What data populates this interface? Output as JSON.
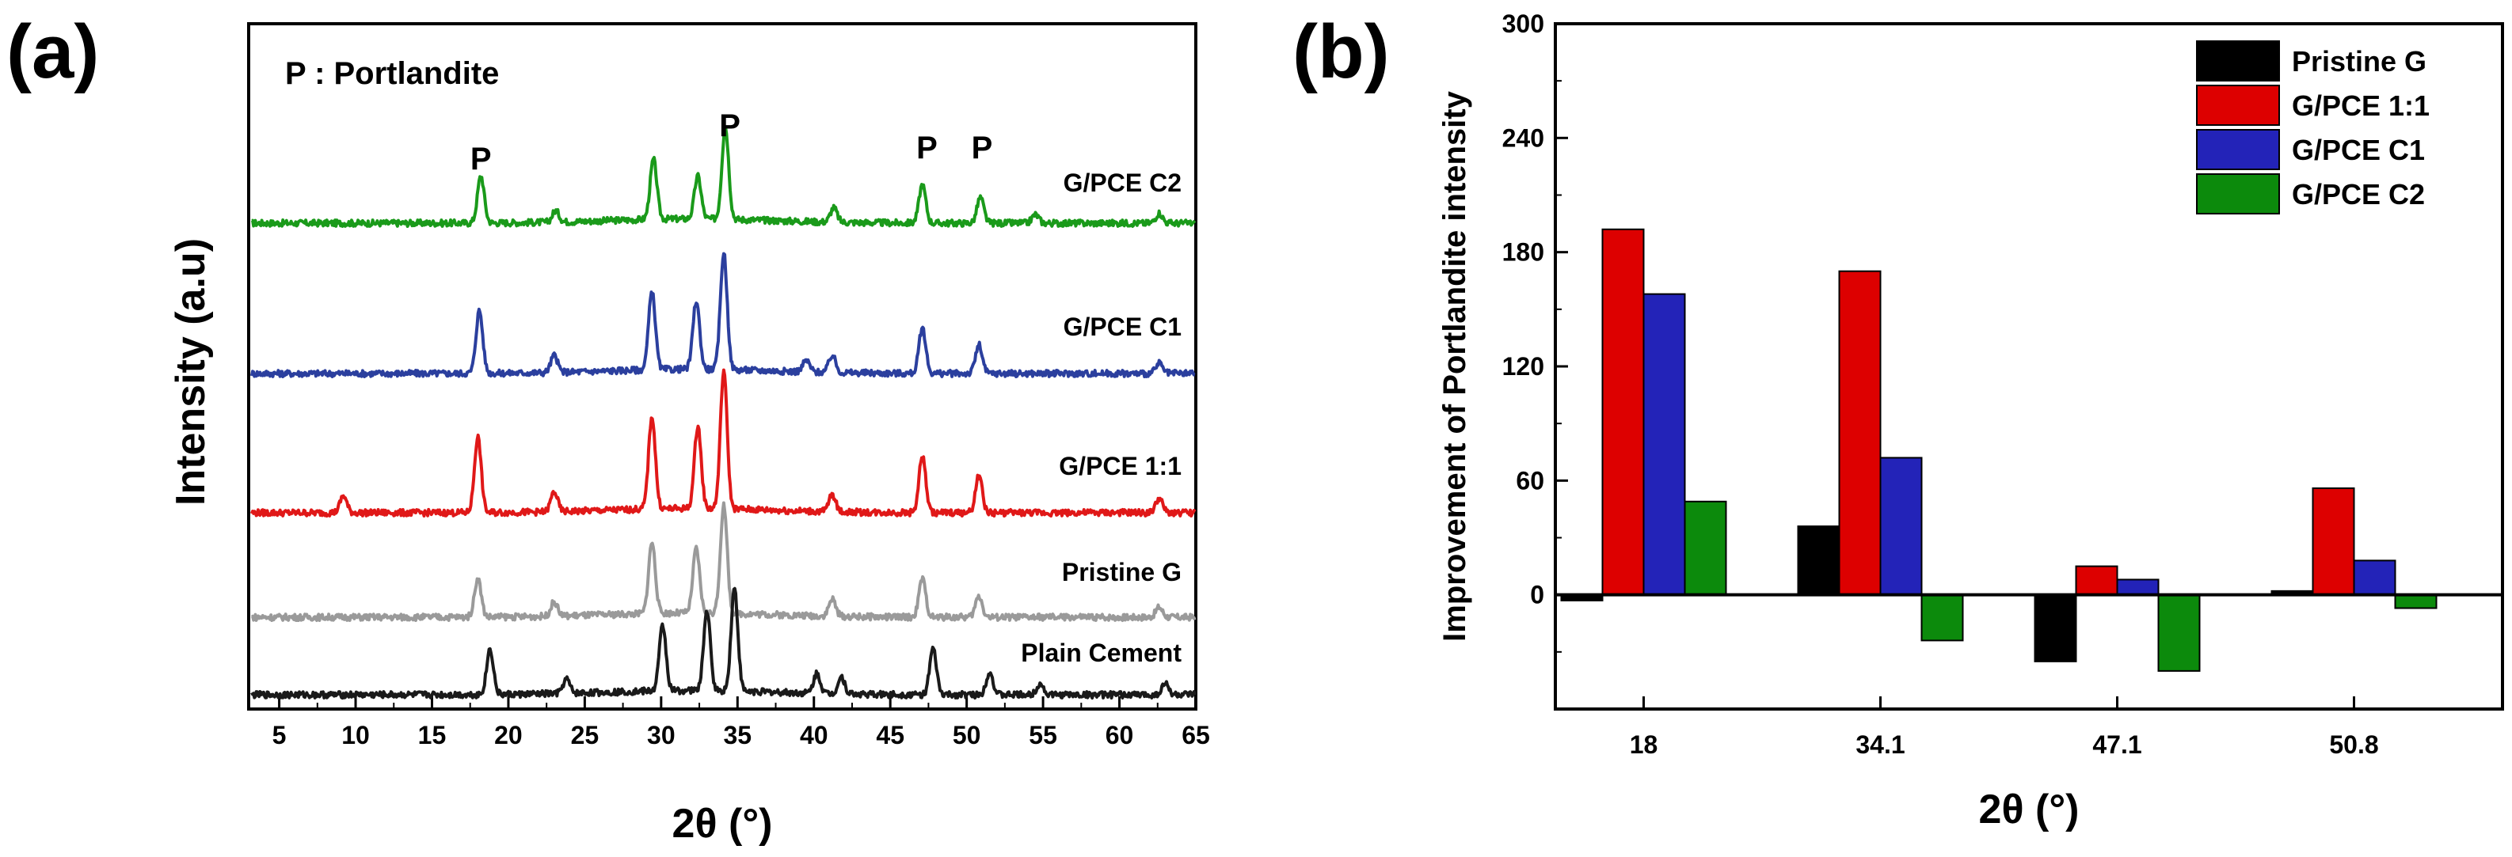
{
  "chart_data": [
    {
      "panel": "(a)",
      "type": "line",
      "title": "",
      "xlabel": "2θ (°)",
      "ylabel": "Intensity (a.u)",
      "xlim": [
        3,
        65
      ],
      "xticks": [
        5,
        10,
        15,
        20,
        25,
        30,
        35,
        40,
        45,
        50,
        55,
        60,
        65
      ],
      "annotation": "P : Portlandite",
      "peak_markers": [
        {
          "label": "P",
          "x": 18.2
        },
        {
          "label": "P",
          "x": 34.5
        },
        {
          "label": "P",
          "x": 47.4
        },
        {
          "label": "P",
          "x": 51.0
        }
      ],
      "series": [
        {
          "name": "G/PCE C2",
          "color": "#1a9a1a",
          "peaks": [
            {
              "x": 18.2,
              "h": 0.33
            },
            {
              "x": 23.1,
              "h": 0.08
            },
            {
              "x": 29.5,
              "h": 0.42
            },
            {
              "x": 32.4,
              "h": 0.3
            },
            {
              "x": 34.2,
              "h": 0.65
            },
            {
              "x": 41.3,
              "h": 0.1
            },
            {
              "x": 47.1,
              "h": 0.27
            },
            {
              "x": 50.9,
              "h": 0.18
            },
            {
              "x": 54.5,
              "h": 0.06
            },
            {
              "x": 62.6,
              "h": 0.07
            }
          ]
        },
        {
          "name": "G/PCE C1",
          "color": "#2b3f9e",
          "peaks": [
            {
              "x": 18.1,
              "h": 0.44
            },
            {
              "x": 23.0,
              "h": 0.12
            },
            {
              "x": 29.4,
              "h": 0.55
            },
            {
              "x": 32.3,
              "h": 0.48
            },
            {
              "x": 34.1,
              "h": 0.82
            },
            {
              "x": 39.5,
              "h": 0.08
            },
            {
              "x": 41.2,
              "h": 0.12
            },
            {
              "x": 47.1,
              "h": 0.32
            },
            {
              "x": 50.8,
              "h": 0.2
            },
            {
              "x": 62.6,
              "h": 0.07
            }
          ]
        },
        {
          "name": "G/PCE 1:1",
          "color": "#e01818",
          "peaks": [
            {
              "x": 9.2,
              "h": 0.12
            },
            {
              "x": 18.0,
              "h": 0.53
            },
            {
              "x": 23.0,
              "h": 0.14
            },
            {
              "x": 29.4,
              "h": 0.65
            },
            {
              "x": 32.4,
              "h": 0.58
            },
            {
              "x": 34.1,
              "h": 0.97
            },
            {
              "x": 41.2,
              "h": 0.12
            },
            {
              "x": 47.1,
              "h": 0.4
            },
            {
              "x": 50.8,
              "h": 0.26
            },
            {
              "x": 62.6,
              "h": 0.1
            }
          ]
        },
        {
          "name": "Pristine G",
          "color": "#9a9a9a",
          "peaks": [
            {
              "x": 18.0,
              "h": 0.27
            },
            {
              "x": 23.0,
              "h": 0.1
            },
            {
              "x": 29.4,
              "h": 0.5
            },
            {
              "x": 32.3,
              "h": 0.45
            },
            {
              "x": 34.1,
              "h": 0.76
            },
            {
              "x": 41.2,
              "h": 0.12
            },
            {
              "x": 47.1,
              "h": 0.27
            },
            {
              "x": 50.8,
              "h": 0.15
            },
            {
              "x": 62.6,
              "h": 0.07
            }
          ]
        },
        {
          "name": "Plain Cement",
          "color": "#1a1a1a",
          "peaks": [
            {
              "x": 18.8,
              "h": 0.32
            },
            {
              "x": 23.8,
              "h": 0.1
            },
            {
              "x": 30.1,
              "h": 0.46
            },
            {
              "x": 33.0,
              "h": 0.56
            },
            {
              "x": 34.8,
              "h": 0.72
            },
            {
              "x": 40.2,
              "h": 0.14
            },
            {
              "x": 41.8,
              "h": 0.12
            },
            {
              "x": 47.8,
              "h": 0.32
            },
            {
              "x": 51.5,
              "h": 0.16
            },
            {
              "x": 54.8,
              "h": 0.08
            },
            {
              "x": 63.0,
              "h": 0.08
            }
          ]
        }
      ]
    },
    {
      "panel": "(b)",
      "type": "bar",
      "title": "",
      "xlabel": "2θ (°)",
      "ylabel": "Improvement of Portlandite intensity",
      "categories": [
        "18",
        "34.1",
        "47.1",
        "50.8"
      ],
      "ylim": [
        -60,
        300
      ],
      "yticks": [
        0,
        60,
        120,
        180,
        240,
        300
      ],
      "legend_position": "top-right",
      "series": [
        {
          "name": "Pristine G",
          "color": "#000000",
          "values": [
            -3,
            36,
            -35,
            2
          ]
        },
        {
          "name": "G/PCE 1:1",
          "color": "#dd0000",
          "values": [
            192,
            170,
            15,
            56
          ]
        },
        {
          "name": "G/PCE C1",
          "color": "#2323b8",
          "values": [
            158,
            72,
            8,
            18
          ]
        },
        {
          "name": "G/PCE C2",
          "color": "#0c8a0c",
          "values": [
            49,
            -24,
            -40,
            -7
          ]
        }
      ]
    }
  ]
}
